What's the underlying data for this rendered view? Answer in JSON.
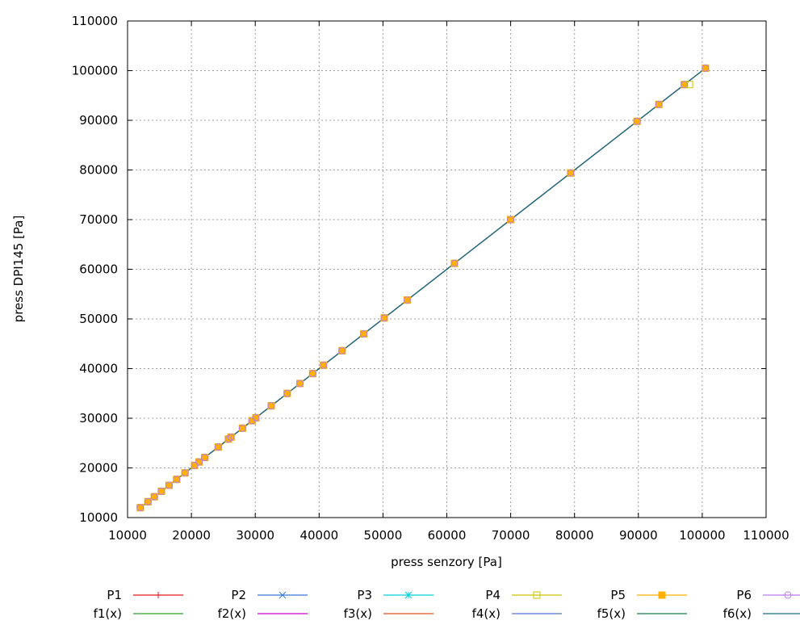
{
  "chart_data": {
    "type": "scatter",
    "title": "",
    "xlabel": "press senzory [Pa]",
    "ylabel": "press DPI145 [Pa]",
    "xlim": [
      10000,
      110000
    ],
    "ylim": [
      10000,
      110000
    ],
    "xticks": [
      10000,
      20000,
      30000,
      40000,
      50000,
      60000,
      70000,
      80000,
      90000,
      100000,
      110000
    ],
    "yticks": [
      10000,
      20000,
      30000,
      40000,
      50000,
      60000,
      70000,
      80000,
      90000,
      100000,
      110000
    ],
    "grid": true,
    "legend_position": "bottom",
    "x": [
      12000,
      13200,
      14200,
      15300,
      16500,
      17700,
      19000,
      20500,
      21200,
      22100,
      24200,
      25800,
      26200,
      28000,
      29500,
      30100,
      32500,
      35000,
      37000,
      39000,
      40700,
      43600,
      47000,
      50200,
      53800,
      61200,
      70000,
      79400,
      89800,
      93200,
      97200,
      100500
    ],
    "series": [
      {
        "name": "P1",
        "marker": "plus",
        "color": "#e41a1c",
        "y": [
          12000,
          13200,
          14200,
          15300,
          16500,
          17700,
          19000,
          20500,
          21200,
          22100,
          24200,
          25800,
          26200,
          28000,
          29500,
          30100,
          32500,
          35000,
          37000,
          39000,
          40700,
          43600,
          47000,
          50200,
          53800,
          61200,
          70000,
          79400,
          89800,
          93200,
          97200,
          100500
        ]
      },
      {
        "name": "P2",
        "marker": "cross",
        "color": "#3778d6",
        "y": [
          12000,
          13200,
          14200,
          15300,
          16500,
          17700,
          19000,
          20500,
          21200,
          22100,
          24200,
          25800,
          26200,
          28000,
          29500,
          30100,
          32500,
          35000,
          37000,
          39000,
          40700,
          43600,
          47000,
          50200,
          53800,
          61200,
          70000,
          79400,
          89800,
          93200,
          97200,
          100500
        ]
      },
      {
        "name": "P3",
        "marker": "star",
        "color": "#00d0d8",
        "y": [
          12000,
          13200,
          14200,
          15300,
          16500,
          17700,
          19000,
          20500,
          21200,
          22100,
          24200,
          25800,
          26200,
          28000,
          29500,
          30100,
          32500,
          35000,
          37000,
          39000,
          40700,
          43600,
          47000,
          50200,
          53800,
          61200,
          70000,
          79400,
          89800,
          93200,
          97200,
          100500
        ]
      },
      {
        "name": "P4",
        "marker": "open-square",
        "color": "#c8c400",
        "y": [
          12000,
          13200,
          14200,
          15300,
          16500,
          17700,
          19000,
          20500,
          21200,
          22100,
          24200,
          25800,
          26200,
          28000,
          29500,
          30100,
          32500,
          35000,
          37000,
          39000,
          40700,
          43600,
          47000,
          50200,
          53800,
          61200,
          70000,
          79400,
          89800,
          93200,
          97200,
          100500
        ]
      },
      {
        "name": "P5",
        "marker": "filled-square",
        "color": "#ffb000",
        "y": [
          12000,
          13200,
          14200,
          15300,
          16500,
          17700,
          19000,
          20500,
          21200,
          22100,
          24200,
          25800,
          26200,
          28000,
          29500,
          30100,
          32500,
          35000,
          37000,
          39000,
          40700,
          43600,
          47000,
          50200,
          53800,
          61200,
          70000,
          79400,
          89800,
          93200,
          97200,
          100500
        ]
      },
      {
        "name": "P6",
        "marker": "open-circle",
        "color": "#b77cf0",
        "y": [
          12000,
          13200,
          14200,
          15300,
          16500,
          17700,
          19000,
          20500,
          21200,
          22100,
          24200,
          25800,
          26200,
          28000,
          29500,
          30100,
          32500,
          35000,
          37000,
          39000,
          40700,
          43600,
          47000,
          50200,
          53800,
          61200,
          70000,
          79400,
          89800,
          93200,
          97200,
          100500
        ]
      }
    ],
    "outliers": [
      {
        "series": "P4",
        "x": 98000,
        "y": 97200
      }
    ],
    "fits": [
      {
        "name": "f1(x)",
        "color": "#2ca02c",
        "x": [
          12000,
          100500
        ],
        "y": [
          12000,
          100500
        ]
      },
      {
        "name": "f2(x)",
        "color": "#cc00cc",
        "x": [
          12000,
          100500
        ],
        "y": [
          12000,
          100500
        ]
      },
      {
        "name": "f3(x)",
        "color": "#d9541e",
        "x": [
          12000,
          100500
        ],
        "y": [
          12000,
          100500
        ]
      },
      {
        "name": "f4(x)",
        "color": "#5577d8",
        "x": [
          12000,
          100500
        ],
        "y": [
          12000,
          100500
        ]
      },
      {
        "name": "f5(x)",
        "color": "#1a7a4a",
        "x": [
          12000,
          100500
        ],
        "y": [
          12000,
          100500
        ]
      },
      {
        "name": "f6(x)",
        "color": "#1f6a80",
        "x": [
          12000,
          100500
        ],
        "y": [
          12000,
          100500
        ]
      }
    ]
  }
}
